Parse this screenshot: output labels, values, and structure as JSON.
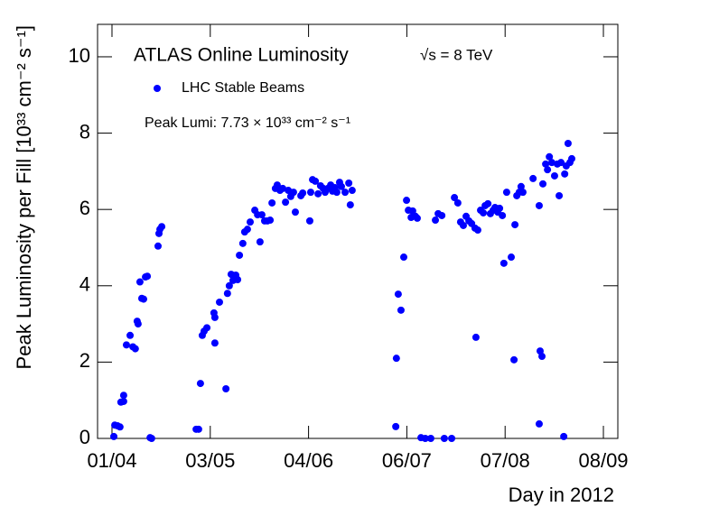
{
  "chart_data": {
    "type": "scatter",
    "title": "ATLAS Online Luminosity",
    "annotations": [
      "√s = 8 TeV",
      "Peak Lumi: 7.73 × 10³³ cm⁻² s⁻¹"
    ],
    "x_label": "Day in 2012",
    "y_label": "Peak Luminosity per Fill [10³³ cm⁻² s⁻¹]",
    "xlim": [
      -4.7,
      164.7
    ],
    "ylim": [
      0,
      10.85
    ],
    "xticks": [
      {
        "value": 0,
        "label": "01/04"
      },
      {
        "value": 32,
        "label": "03/05"
      },
      {
        "value": 64,
        "label": "04/06"
      },
      {
        "value": 96,
        "label": "06/07"
      },
      {
        "value": 128,
        "label": "07/08"
      },
      {
        "value": 160,
        "label": "08/09"
      }
    ],
    "yticks": [
      0,
      2,
      4,
      6,
      8,
      10
    ],
    "legend": "top-left",
    "series": [
      {
        "name": "LHC Stable Beams",
        "color": "#0000ff",
        "x": [
          0.6,
          0.9,
          1.8,
          2.6,
          2.9,
          3.8,
          3.8,
          4.7,
          5.9,
          6.8,
          7.6,
          8.2,
          8.5,
          9.1,
          9.7,
          10.3,
          10.9,
          11.5,
          12.4,
          12.9,
          15,
          15.3,
          15.6,
          16.2,
          27.4,
          28.2,
          28.8,
          29.4,
          30,
          30.9,
          33.2,
          33.5,
          33.5,
          35,
          37.1,
          37.6,
          38.2,
          38.8,
          39.4,
          40.3,
          40.9,
          41.5,
          42.6,
          43.2,
          44.1,
          45,
          46.5,
          47.4,
          48.2,
          48.8,
          49.7,
          50.6,
          51.5,
          52.1,
          53.2,
          53.8,
          54.7,
          55.6,
          56.5,
          57.4,
          58.2,
          59.1,
          59.7,
          61.5,
          62.1,
          64.4,
          64.7,
          65.3,
          66.2,
          67.1,
          67.9,
          68.8,
          69.4,
          70.3,
          71.2,
          71.8,
          72.6,
          73.2,
          74.1,
          74.7,
          75.9,
          77.1,
          77.6,
          78.2,
          92.4,
          92.6,
          93.2,
          94.1,
          95,
          95.9,
          96.5,
          97.4,
          97.9,
          98.8,
          99.4,
          100.6,
          102,
          103.8,
          105.3,
          106.2,
          107.4,
          108.2,
          110.6,
          111.5,
          112.6,
          113.5,
          114.4,
          115.3,
          116.2,
          117.1,
          118.2,
          118.5,
          119.1,
          120,
          120.9,
          121.5,
          122.4,
          123.2,
          124.1,
          124.7,
          125.6,
          126.2,
          127.1,
          127.6,
          128.5,
          130,
          130.9,
          131.2,
          131.8,
          132.6,
          133.2,
          133.8,
          137.1,
          139.1,
          139.4,
          140,
          139.1,
          140.3,
          141.2,
          141.8,
          142.4,
          143.2,
          144.1,
          145,
          145.6,
          146.2,
          147.1,
          147.4,
          147.9,
          148.5,
          149.1,
          149.7
        ],
        "values": [
          0.05,
          0.35,
          0.33,
          0.3,
          0.95,
          0.97,
          1.13,
          2.45,
          2.7,
          2.4,
          2.35,
          3.07,
          3,
          4.1,
          3.67,
          3.65,
          4.23,
          4.25,
          0.02,
          0,
          5.04,
          5.37,
          5.48,
          5.55,
          0.24,
          0.24,
          1.44,
          2.7,
          2.81,
          2.9,
          3.29,
          3.17,
          2.5,
          3.57,
          1.3,
          3.8,
          4,
          4.3,
          4.14,
          4.28,
          4.16,
          4.8,
          5.11,
          5.41,
          5.48,
          5.67,
          5.98,
          5.86,
          5.15,
          5.86,
          5.7,
          5.7,
          5.72,
          6.17,
          6.55,
          6.64,
          6.5,
          6.55,
          6.19,
          6.5,
          6.34,
          6.45,
          5.93,
          6.36,
          6.43,
          5.7,
          6.45,
          6.78,
          6.74,
          6.41,
          6.62,
          6.55,
          6.45,
          6.55,
          6.64,
          6.48,
          6.57,
          6.45,
          6.71,
          6.6,
          6.45,
          6.69,
          6.12,
          6.5,
          0.31,
          2.1,
          3.78,
          3.36,
          4.75,
          6.24,
          5.98,
          5.79,
          5.96,
          5.82,
          5.77,
          0.02,
          0,
          0,
          5.72,
          5.89,
          5.84,
          0,
          0,
          6.31,
          6.17,
          5.67,
          5.58,
          5.82,
          5.7,
          5.63,
          5.51,
          2.65,
          5.46,
          5.98,
          5.91,
          6.1,
          6.15,
          5.89,
          5.98,
          6.05,
          5.93,
          6.03,
          5.84,
          4.59,
          6.45,
          4.75,
          2.06,
          5.6,
          6.36,
          6.45,
          6.6,
          6.45,
          6.81,
          6.1,
          2.29,
          2.15,
          0.38,
          6.67,
          7.19,
          7.04,
          7.38,
          7.23,
          6.88,
          7.19,
          6.36,
          7.23,
          0.05,
          6.93,
          7.14,
          7.73,
          7.23,
          7.33
        ]
      }
    ]
  }
}
